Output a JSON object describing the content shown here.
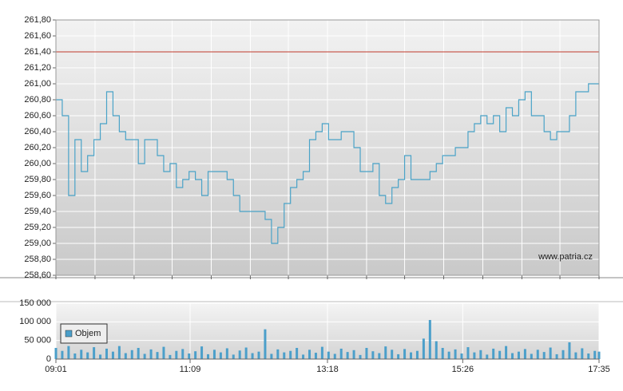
{
  "chart_data": [
    {
      "type": "line",
      "watermark": "www.patria.cz",
      "xlim": [
        541,
        1055
      ],
      "xticks": [
        541,
        578,
        615,
        651,
        688,
        725,
        761,
        798,
        835,
        871,
        908,
        945,
        982,
        1018,
        1055
      ],
      "ylim": [
        258.6,
        261.8
      ],
      "yticks": [
        {
          "value": 258.6,
          "label": "258,60"
        },
        {
          "value": 258.8,
          "label": "258,80"
        },
        {
          "value": 259.0,
          "label": "259,00"
        },
        {
          "value": 259.2,
          "label": "259,20"
        },
        {
          "value": 259.4,
          "label": "259,40"
        },
        {
          "value": 259.6,
          "label": "259,60"
        },
        {
          "value": 259.8,
          "label": "259,80"
        },
        {
          "value": 260.0,
          "label": "260,00"
        },
        {
          "value": 260.2,
          "label": "260,20"
        },
        {
          "value": 260.4,
          "label": "260,40"
        },
        {
          "value": 260.6,
          "label": "260,60"
        },
        {
          "value": 260.8,
          "label": "260,80"
        },
        {
          "value": 261.0,
          "label": "261,00"
        },
        {
          "value": 261.2,
          "label": "261,20"
        },
        {
          "value": 261.4,
          "label": "261,40"
        },
        {
          "value": 261.6,
          "label": "261,60"
        },
        {
          "value": 261.8,
          "label": "261,80"
        }
      ],
      "grid": true,
      "reference_line": {
        "value": 261.4,
        "color": "#c0392b"
      },
      "x": [
        541,
        547,
        553,
        559,
        565,
        571,
        577,
        583,
        589,
        595,
        601,
        607,
        613,
        619,
        625,
        631,
        637,
        643,
        649,
        655,
        661,
        667,
        673,
        679,
        685,
        691,
        697,
        703,
        709,
        715,
        721,
        727,
        733,
        739,
        745,
        751,
        757,
        763,
        769,
        775,
        781,
        787,
        793,
        799,
        805,
        811,
        817,
        823,
        829,
        835,
        841,
        847,
        853,
        859,
        865,
        871,
        877,
        883,
        889,
        895,
        901,
        907,
        913,
        919,
        925,
        931,
        937,
        943,
        949,
        955,
        961,
        967,
        973,
        979,
        985,
        991,
        997,
        1003,
        1009,
        1015,
        1021,
        1027,
        1033,
        1039,
        1045,
        1051,
        1055
      ],
      "series": [
        {
          "color": "#4aa3c8",
          "values": [
            260.8,
            260.6,
            259.6,
            260.3,
            259.9,
            260.1,
            260.3,
            260.5,
            260.9,
            260.6,
            260.4,
            260.3,
            260.3,
            260.0,
            260.3,
            260.3,
            260.1,
            259.9,
            260.0,
            259.7,
            259.8,
            259.9,
            259.8,
            259.6,
            259.9,
            259.9,
            259.9,
            259.8,
            259.6,
            259.4,
            259.4,
            259.4,
            259.4,
            259.3,
            259.0,
            259.2,
            259.5,
            259.7,
            259.8,
            259.9,
            260.3,
            260.4,
            260.5,
            260.3,
            260.3,
            260.4,
            260.4,
            260.2,
            259.9,
            259.9,
            260.0,
            259.6,
            259.5,
            259.7,
            259.8,
            260.1,
            259.8,
            259.8,
            259.8,
            259.9,
            260.0,
            260.1,
            260.1,
            260.2,
            260.2,
            260.4,
            260.5,
            260.6,
            260.5,
            260.6,
            260.4,
            260.7,
            260.6,
            260.8,
            260.9,
            260.6,
            260.6,
            260.4,
            260.3,
            260.4,
            260.4,
            260.6,
            260.9,
            260.9,
            261.0,
            261.0,
            261.0
          ]
        }
      ]
    },
    {
      "type": "bar",
      "legend": "top-left",
      "xlim": [
        541,
        1055
      ],
      "xticks": [
        {
          "value": 541,
          "label": "09:01"
        },
        {
          "value": 668,
          "label": "11:09"
        },
        {
          "value": 798,
          "label": "13:18"
        },
        {
          "value": 926,
          "label": "15:26"
        },
        {
          "value": 1055,
          "label": "17:35"
        }
      ],
      "ylim": [
        0,
        150000
      ],
      "yticks": [
        {
          "value": 0,
          "label": "0"
        },
        {
          "value": 50000,
          "label": "50 000"
        },
        {
          "value": 100000,
          "label": "100 000"
        },
        {
          "value": 150000,
          "label": "150 000"
        }
      ],
      "grid": true,
      "x": [
        541,
        547,
        553,
        559,
        565,
        571,
        577,
        583,
        589,
        595,
        601,
        607,
        613,
        619,
        625,
        631,
        637,
        643,
        649,
        655,
        661,
        667,
        673,
        679,
        685,
        691,
        697,
        703,
        709,
        715,
        721,
        727,
        733,
        739,
        745,
        751,
        757,
        763,
        769,
        775,
        781,
        787,
        793,
        799,
        805,
        811,
        817,
        823,
        829,
        835,
        841,
        847,
        853,
        859,
        865,
        871,
        877,
        883,
        889,
        895,
        901,
        907,
        913,
        919,
        925,
        931,
        937,
        943,
        949,
        955,
        961,
        967,
        973,
        979,
        985,
        991,
        997,
        1003,
        1009,
        1015,
        1021,
        1027,
        1033,
        1039,
        1045,
        1051,
        1055
      ],
      "series": [
        {
          "name": "Objem",
          "color": "#4b9fca",
          "values": [
            30000,
            22000,
            35000,
            15000,
            25000,
            18000,
            32000,
            12000,
            28000,
            20000,
            35000,
            16000,
            24000,
            30000,
            14000,
            26000,
            19000,
            33000,
            11000,
            22000,
            27000,
            15000,
            21000,
            34000,
            13000,
            25000,
            18000,
            29000,
            12000,
            23000,
            31000,
            16000,
            20000,
            80000,
            14000,
            26000,
            18000,
            22000,
            30000,
            12000,
            25000,
            17000,
            33000,
            20000,
            14000,
            28000,
            19000,
            24000,
            11000,
            30000,
            21000,
            16000,
            34000,
            25000,
            13000,
            27000,
            18000,
            22000,
            55000,
            105000,
            48000,
            30000,
            20000,
            26000,
            15000,
            32000,
            18000,
            24000,
            12000,
            28000,
            22000,
            35000,
            16000,
            20000,
            27000,
            14000,
            25000,
            19000,
            31000,
            13000,
            24000,
            45000,
            18000,
            29000,
            15000,
            22000,
            20000
          ]
        }
      ]
    }
  ]
}
